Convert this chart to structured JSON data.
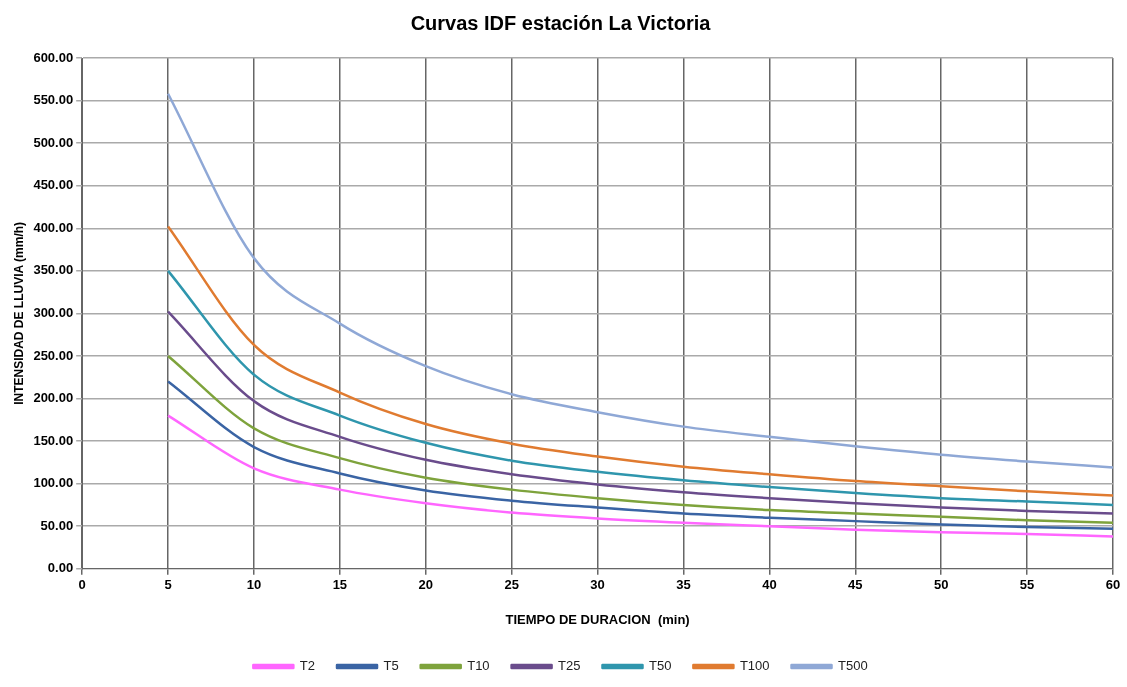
{
  "chart_data": {
    "type": "line",
    "title": "Curvas IDF estación La Victoria",
    "xlabel": "TIEMPO DE DURACION  (min)",
    "ylabel": "INTENSIDAD DE LLUVIA (mm/h)",
    "x": [
      5,
      10,
      15,
      20,
      25,
      30,
      35,
      40,
      45,
      50,
      55,
      60
    ],
    "xlim": [
      0,
      60
    ],
    "xticks": [
      0,
      5,
      10,
      15,
      20,
      25,
      30,
      35,
      40,
      45,
      50,
      55,
      60
    ],
    "ylim": [
      0,
      600
    ],
    "yticks": [
      {
        "value": 0,
        "label": "0.00"
      },
      {
        "value": 50,
        "label": "50.00"
      },
      {
        "value": 100,
        "label": "100.00"
      },
      {
        "value": 150,
        "label": "150.00"
      },
      {
        "value": 200,
        "label": "200.00"
      },
      {
        "value": 250,
        "label": "250.00"
      },
      {
        "value": 300,
        "label": "300.00"
      },
      {
        "value": 350,
        "label": "350.00"
      },
      {
        "value": 400,
        "label": "400.00"
      },
      {
        "value": 450,
        "label": "450.00"
      },
      {
        "value": 500,
        "label": "500.00"
      },
      {
        "value": 550,
        "label": "550.00"
      },
      {
        "value": 600,
        "label": "600.00"
      }
    ],
    "grid": true,
    "legend": "bottom",
    "marker": "none",
    "line_style": "solid",
    "series": [
      {
        "name": "T2",
        "color": "#ff66ff",
        "values": [
          180,
          118,
          93,
          77,
          66,
          59,
          54,
          50,
          46,
          43,
          41,
          38
        ]
      },
      {
        "name": "T5",
        "color": "#3a64a4",
        "values": [
          220,
          143,
          112,
          92,
          80,
          72,
          65,
          60,
          56,
          52,
          49,
          47
        ]
      },
      {
        "name": "T10",
        "color": "#7ea33c",
        "values": [
          250,
          165,
          130,
          107,
          93,
          83,
          75,
          69,
          65,
          61,
          57,
          54
        ]
      },
      {
        "name": "T25",
        "color": "#6a4c8c",
        "values": [
          302,
          197,
          155,
          128,
          111,
          99,
          90,
          83,
          77,
          72,
          68,
          65
        ]
      },
      {
        "name": "T50",
        "color": "#2f96ad",
        "values": [
          350,
          228,
          180,
          148,
          127,
          114,
          104,
          96,
          89,
          83,
          79,
          75
        ]
      },
      {
        "name": "T100",
        "color": "#e07b30",
        "values": [
          402,
          263,
          207,
          170,
          147,
          132,
          120,
          111,
          103,
          97,
          91,
          86
        ]
      },
      {
        "name": "T500",
        "color": "#8fa8d6",
        "values": [
          558,
          365,
          288,
          238,
          205,
          184,
          167,
          155,
          144,
          134,
          126,
          119
        ]
      }
    ]
  }
}
